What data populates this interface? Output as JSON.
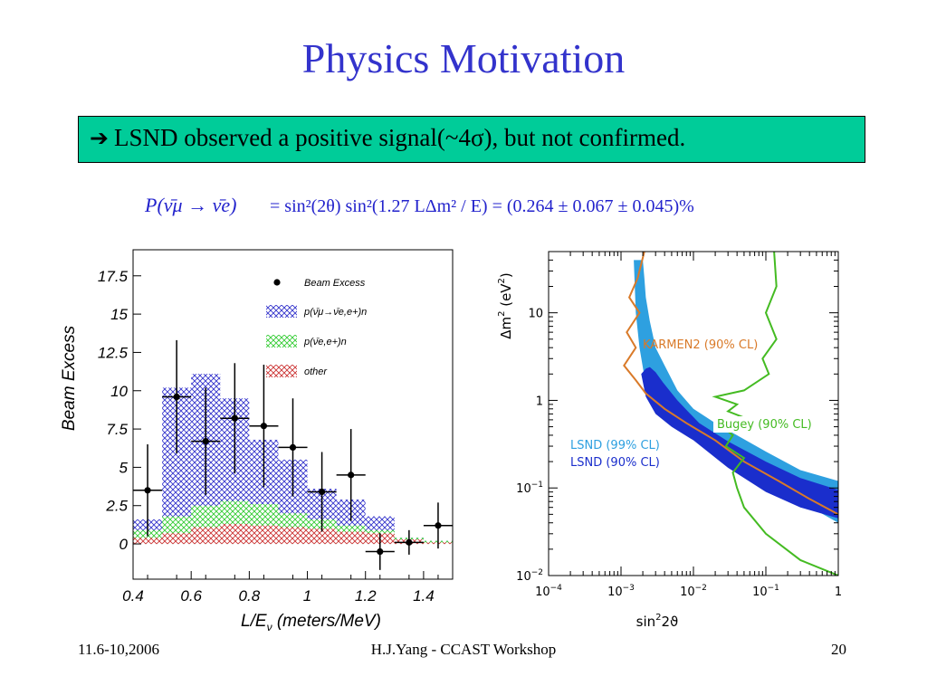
{
  "slide": {
    "title": "Physics Motivation",
    "callout_arrow": "➔",
    "callout_text": "LSND observed a positive signal(~4σ), but not confirmed.",
    "formula": {
      "lhs": "P(ν̄μ → ν̄e)",
      "rhs": "= sin²(2θ) sin²(1.27 LΔm² / E) = (0.264 ± 0.067 ± 0.045)%"
    },
    "footer": {
      "date": "11.6-10,2006",
      "center": "H.J.Yang - CCAST Workshop",
      "page": "20"
    }
  },
  "colors": {
    "title": "#3333cc",
    "callout_bg": "#00cc99",
    "numu_nue_hatch": "#3333cc",
    "nue_hatch": "#33cc33",
    "other_hatch": "#cc3333",
    "lsnd99": "#2ea0e0",
    "lsnd90": "#1a2ecc",
    "karmen": "#d97a29",
    "bugey": "#44bb22"
  },
  "chart_data": [
    {
      "type": "bar",
      "xlabel": "L/E",
      "xlabel_sub": "ν",
      "xlabel_unit": " (meters/MeV)",
      "ylabel": "Beam Excess",
      "xlim": [
        0.4,
        1.5
      ],
      "ylim": [
        -2.3,
        19.2
      ],
      "x_ticks": [
        0.4,
        0.6,
        0.8,
        1,
        1.2,
        1.4
      ],
      "x_tick_labels": [
        "0.4",
        "0.6",
        "0.8",
        "1",
        "1.2",
        "1.4"
      ],
      "y_ticks": [
        0,
        2.5,
        5,
        7.5,
        10,
        12.5,
        15,
        17.5
      ],
      "y_tick_labels": [
        "0",
        "2.5",
        "5",
        "7.5",
        "10",
        "12.5",
        "15",
        "17.5"
      ],
      "bin_edges": [
        0.4,
        0.5,
        0.6,
        0.7,
        0.8,
        0.9,
        1.0,
        1.1,
        1.2,
        1.3,
        1.4,
        1.5
      ],
      "series": [
        {
          "name": "p(ν̄μ→ν̄e,e+)n",
          "key": "numu_nue",
          "cumulative": [
            1.6,
            10.2,
            11.1,
            9.5,
            6.8,
            5.5,
            3.6,
            2.9,
            1.8,
            0.4,
            0.2
          ]
        },
        {
          "name": "p(ν̄e,e+)n",
          "key": "nue",
          "cumulative": [
            0.9,
            1.8,
            2.5,
            2.8,
            2.6,
            2.0,
            1.6,
            1.2,
            0.9,
            0.4,
            0.2
          ]
        },
        {
          "name": "other",
          "key": "other",
          "cumulative": [
            0.4,
            0.7,
            1.1,
            1.3,
            1.2,
            1.1,
            1.0,
            0.8,
            0.7,
            0.3,
            0.1
          ]
        }
      ],
      "data_points": {
        "name": "Beam Excess",
        "x": [
          0.45,
          0.55,
          0.65,
          0.75,
          0.85,
          0.95,
          1.05,
          1.15,
          1.25,
          1.35,
          1.45
        ],
        "y": [
          3.5,
          9.6,
          6.7,
          8.2,
          7.7,
          6.3,
          3.4,
          4.5,
          -0.5,
          0.1,
          1.2
        ],
        "err": [
          3.0,
          3.7,
          3.5,
          3.6,
          4.0,
          3.2,
          2.6,
          3.0,
          1.2,
          0.8,
          1.5
        ]
      },
      "legend_position": "top-right"
    },
    {
      "type": "line",
      "xlabel_main": "sin",
      "xlabel_sup": "2",
      "xlabel_tail": "2ϑ",
      "ylabel_main": "Δm",
      "ylabel_sup1": "2",
      "ylabel_unit": " (eV",
      "ylabel_sup2": "2",
      "ylabel_close": ")",
      "x_scale": "log",
      "y_scale": "log",
      "xlim": [
        0.0001,
        1
      ],
      "ylim": [
        0.01,
        50
      ],
      "x_tick_labels": [
        {
          "base": "10",
          "exp": "−4",
          "value": 0.0001
        },
        {
          "base": "10",
          "exp": "−3",
          "value": 0.001
        },
        {
          "base": "10",
          "exp": "−2",
          "value": 0.01
        },
        {
          "base": "10",
          "exp": "−1",
          "value": 0.1
        },
        {
          "base": "1",
          "exp": "",
          "value": 1
        }
      ],
      "y_tick_labels": [
        {
          "base": "10",
          "exp": "−2",
          "value": 0.01
        },
        {
          "base": "10",
          "exp": "−1",
          "value": 0.1
        },
        {
          "base": "1",
          "exp": "",
          "value": 1
        },
        {
          "base": "10",
          "exp": "",
          "value": 10
        }
      ],
      "regions": [
        {
          "name": "LSND (99% CL)",
          "key": "lsnd99",
          "x": [
            0.0015,
            0.0016,
            0.0018,
            0.0022,
            0.0035,
            0.007,
            0.015,
            0.04,
            0.1,
            0.3,
            1,
            1,
            0.3,
            0.1,
            0.04,
            0.02,
            0.01,
            0.006,
            0.004,
            0.003,
            0.0025,
            0.0022,
            0.0021,
            0.002,
            0.0019
          ],
          "y": [
            40,
            10,
            4,
            1.5,
            0.9,
            0.6,
            0.4,
            0.2,
            0.11,
            0.07,
            0.04,
            0.12,
            0.16,
            0.26,
            0.4,
            0.55,
            0.8,
            1.3,
            2.5,
            4,
            8,
            15,
            25,
            40,
            40
          ]
        },
        {
          "name": "LSND (90% CL)",
          "key": "lsnd90",
          "x": [
            0.0019,
            0.0022,
            0.003,
            0.005,
            0.01,
            0.03,
            0.1,
            0.3,
            1,
            1,
            0.3,
            0.1,
            0.03,
            0.012,
            0.006,
            0.0038,
            0.003,
            0.0025,
            0.0022,
            0.002
          ],
          "y": [
            2,
            1.1,
            0.7,
            0.5,
            0.35,
            0.17,
            0.09,
            0.06,
            0.045,
            0.095,
            0.13,
            0.2,
            0.34,
            0.55,
            1.0,
            1.6,
            2.1,
            2.4,
            2.3,
            2.1
          ]
        }
      ],
      "curves": [
        {
          "name": "KARMEN2 (90% CL)",
          "key": "karmen",
          "x": [
            0.0021,
            0.0017,
            0.0013,
            0.0018,
            0.0012,
            0.0016,
            0.0011,
            0.0016,
            0.0022,
            0.004,
            0.008,
            0.02,
            0.05,
            0.15,
            0.4,
            1
          ],
          "y": [
            50,
            25,
            15,
            10,
            6,
            4,
            2.5,
            1.7,
            1.2,
            0.8,
            0.55,
            0.35,
            0.2,
            0.12,
            0.075,
            0.05
          ]
        },
        {
          "name": "Bugey (90% CL)",
          "key": "bugey",
          "x": [
            0.13,
            0.14,
            0.1,
            0.14,
            0.09,
            0.11,
            0.05,
            0.02,
            0.04,
            0.03,
            0.06,
            0.025,
            0.035,
            0.028,
            0.05,
            0.035,
            0.04,
            0.05,
            0.1,
            0.3,
            1
          ],
          "y": [
            50,
            20,
            10,
            5,
            3,
            2,
            1.3,
            1.1,
            0.9,
            0.75,
            0.6,
            0.5,
            0.4,
            0.3,
            0.22,
            0.15,
            0.1,
            0.06,
            0.03,
            0.015,
            0.01
          ]
        }
      ],
      "annotations": [
        {
          "text": "KARMEN2 (90% CL)",
          "key": "karmen"
        },
        {
          "text": "Bugey (90% CL)",
          "key": "bugey"
        },
        {
          "text": "LSND (99% CL)",
          "key": "lsnd99"
        },
        {
          "text": "LSND (90% CL)",
          "key": "lsnd90"
        }
      ]
    }
  ]
}
